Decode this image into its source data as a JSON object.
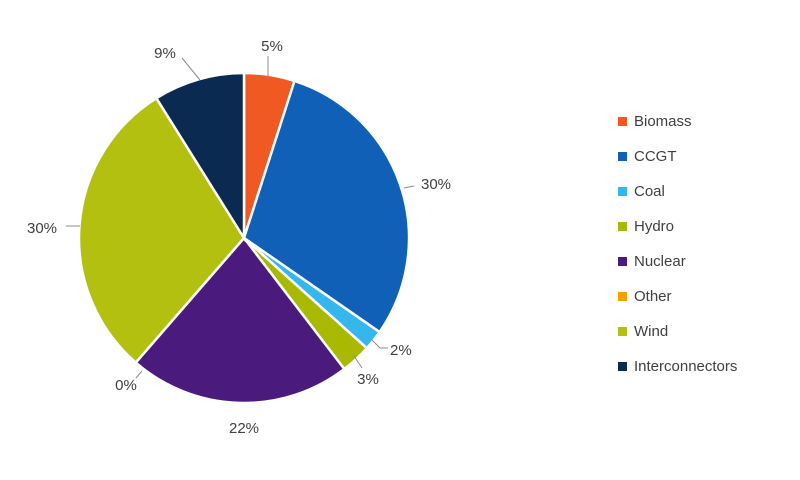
{
  "chart_data": {
    "type": "pie",
    "title": "",
    "legend_position": "right",
    "categories": [
      "Biomass",
      "CCGT",
      "Coal",
      "Hydro",
      "Nuclear",
      "Other",
      "Wind",
      "Interconnectors"
    ],
    "values": [
      5,
      30,
      2,
      3,
      22,
      0,
      30,
      9
    ],
    "labels": [
      "5%",
      "30%",
      "2%",
      "3%",
      "22%",
      "0%",
      "30%",
      "9%"
    ],
    "colors": [
      "#f05a22",
      "#0f60b6",
      "#35b6ec",
      "#a9b800",
      "#4a1a7d",
      "#f5a000",
      "#b3c010",
      "#0a2a52"
    ]
  }
}
